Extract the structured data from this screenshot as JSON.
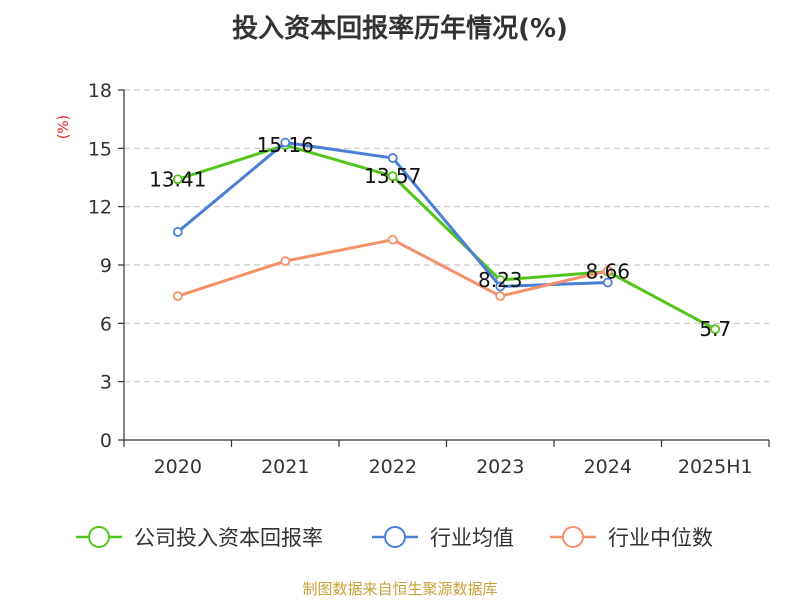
{
  "chart_data": {
    "type": "line",
    "title": "投入资本回报率历年情况(%)",
    "ylabel": "(%)",
    "categories": [
      "2020",
      "2021",
      "2022",
      "2023",
      "2024",
      "2025H1"
    ],
    "ylim": [
      0,
      18
    ],
    "yticks": [
      0,
      3,
      6,
      9,
      12,
      15,
      18
    ],
    "grid": true,
    "legend_position": "bottom",
    "series": [
      {
        "name": "公司投入资本回报率",
        "color": "#52c41a",
        "values": [
          13.41,
          15.16,
          13.57,
          8.23,
          8.66,
          5.7
        ],
        "labels": [
          "13.41",
          "15.16",
          "13.57",
          "8.23",
          "8.66",
          "5.7"
        ]
      },
      {
        "name": "行业均值",
        "color": "#4a7fd8",
        "values": [
          10.7,
          15.3,
          14.5,
          7.9,
          8.1,
          null
        ]
      },
      {
        "name": "行业中位数",
        "color": "#f4916a",
        "values": [
          7.4,
          9.2,
          10.3,
          7.4,
          8.7,
          null
        ]
      }
    ]
  },
  "source": "制图数据来自恒生聚源数据库"
}
